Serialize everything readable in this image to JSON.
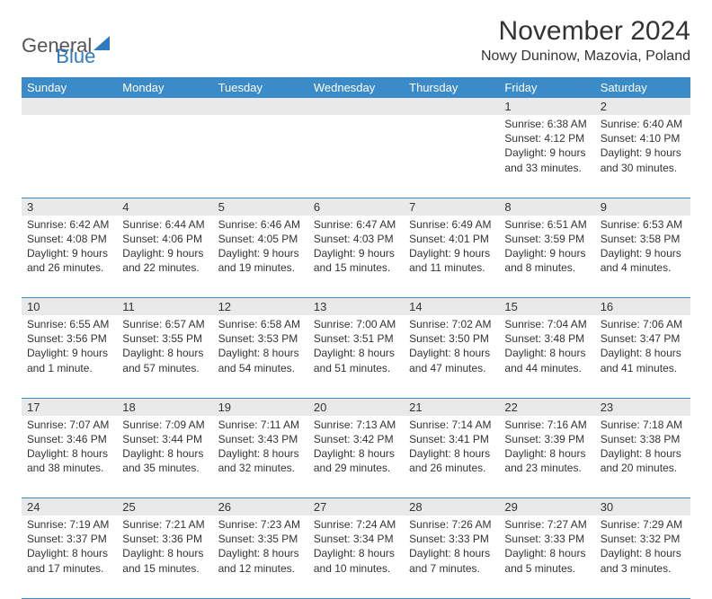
{
  "brand": {
    "part1": "General",
    "part2": "Blue"
  },
  "title": "November 2024",
  "location": "Nowy Duninow, Mazovia, Poland",
  "colors": {
    "header_bg": "#3b8bc9",
    "header_text": "#ffffff",
    "daynum_bg": "#e9e9e9",
    "rule": "#3b8bc9",
    "text": "#333333",
    "brand_blue": "#2f7bbf",
    "brand_gray": "#555555",
    "background": "#ffffff"
  },
  "day_headers": [
    "Sunday",
    "Monday",
    "Tuesday",
    "Wednesday",
    "Thursday",
    "Friday",
    "Saturday"
  ],
  "weeks": [
    [
      {
        "n": "",
        "sr": "",
        "ss": "",
        "dl": ""
      },
      {
        "n": "",
        "sr": "",
        "ss": "",
        "dl": ""
      },
      {
        "n": "",
        "sr": "",
        "ss": "",
        "dl": ""
      },
      {
        "n": "",
        "sr": "",
        "ss": "",
        "dl": ""
      },
      {
        "n": "",
        "sr": "",
        "ss": "",
        "dl": ""
      },
      {
        "n": "1",
        "sr": "Sunrise: 6:38 AM",
        "ss": "Sunset: 4:12 PM",
        "dl": "Daylight: 9 hours and 33 minutes."
      },
      {
        "n": "2",
        "sr": "Sunrise: 6:40 AM",
        "ss": "Sunset: 4:10 PM",
        "dl": "Daylight: 9 hours and 30 minutes."
      }
    ],
    [
      {
        "n": "3",
        "sr": "Sunrise: 6:42 AM",
        "ss": "Sunset: 4:08 PM",
        "dl": "Daylight: 9 hours and 26 minutes."
      },
      {
        "n": "4",
        "sr": "Sunrise: 6:44 AM",
        "ss": "Sunset: 4:06 PM",
        "dl": "Daylight: 9 hours and 22 minutes."
      },
      {
        "n": "5",
        "sr": "Sunrise: 6:46 AM",
        "ss": "Sunset: 4:05 PM",
        "dl": "Daylight: 9 hours and 19 minutes."
      },
      {
        "n": "6",
        "sr": "Sunrise: 6:47 AM",
        "ss": "Sunset: 4:03 PM",
        "dl": "Daylight: 9 hours and 15 minutes."
      },
      {
        "n": "7",
        "sr": "Sunrise: 6:49 AM",
        "ss": "Sunset: 4:01 PM",
        "dl": "Daylight: 9 hours and 11 minutes."
      },
      {
        "n": "8",
        "sr": "Sunrise: 6:51 AM",
        "ss": "Sunset: 3:59 PM",
        "dl": "Daylight: 9 hours and 8 minutes."
      },
      {
        "n": "9",
        "sr": "Sunrise: 6:53 AM",
        "ss": "Sunset: 3:58 PM",
        "dl": "Daylight: 9 hours and 4 minutes."
      }
    ],
    [
      {
        "n": "10",
        "sr": "Sunrise: 6:55 AM",
        "ss": "Sunset: 3:56 PM",
        "dl": "Daylight: 9 hours and 1 minute."
      },
      {
        "n": "11",
        "sr": "Sunrise: 6:57 AM",
        "ss": "Sunset: 3:55 PM",
        "dl": "Daylight: 8 hours and 57 minutes."
      },
      {
        "n": "12",
        "sr": "Sunrise: 6:58 AM",
        "ss": "Sunset: 3:53 PM",
        "dl": "Daylight: 8 hours and 54 minutes."
      },
      {
        "n": "13",
        "sr": "Sunrise: 7:00 AM",
        "ss": "Sunset: 3:51 PM",
        "dl": "Daylight: 8 hours and 51 minutes."
      },
      {
        "n": "14",
        "sr": "Sunrise: 7:02 AM",
        "ss": "Sunset: 3:50 PM",
        "dl": "Daylight: 8 hours and 47 minutes."
      },
      {
        "n": "15",
        "sr": "Sunrise: 7:04 AM",
        "ss": "Sunset: 3:48 PM",
        "dl": "Daylight: 8 hours and 44 minutes."
      },
      {
        "n": "16",
        "sr": "Sunrise: 7:06 AM",
        "ss": "Sunset: 3:47 PM",
        "dl": "Daylight: 8 hours and 41 minutes."
      }
    ],
    [
      {
        "n": "17",
        "sr": "Sunrise: 7:07 AM",
        "ss": "Sunset: 3:46 PM",
        "dl": "Daylight: 8 hours and 38 minutes."
      },
      {
        "n": "18",
        "sr": "Sunrise: 7:09 AM",
        "ss": "Sunset: 3:44 PM",
        "dl": "Daylight: 8 hours and 35 minutes."
      },
      {
        "n": "19",
        "sr": "Sunrise: 7:11 AM",
        "ss": "Sunset: 3:43 PM",
        "dl": "Daylight: 8 hours and 32 minutes."
      },
      {
        "n": "20",
        "sr": "Sunrise: 7:13 AM",
        "ss": "Sunset: 3:42 PM",
        "dl": "Daylight: 8 hours and 29 minutes."
      },
      {
        "n": "21",
        "sr": "Sunrise: 7:14 AM",
        "ss": "Sunset: 3:41 PM",
        "dl": "Daylight: 8 hours and 26 minutes."
      },
      {
        "n": "22",
        "sr": "Sunrise: 7:16 AM",
        "ss": "Sunset: 3:39 PM",
        "dl": "Daylight: 8 hours and 23 minutes."
      },
      {
        "n": "23",
        "sr": "Sunrise: 7:18 AM",
        "ss": "Sunset: 3:38 PM",
        "dl": "Daylight: 8 hours and 20 minutes."
      }
    ],
    [
      {
        "n": "24",
        "sr": "Sunrise: 7:19 AM",
        "ss": "Sunset: 3:37 PM",
        "dl": "Daylight: 8 hours and 17 minutes."
      },
      {
        "n": "25",
        "sr": "Sunrise: 7:21 AM",
        "ss": "Sunset: 3:36 PM",
        "dl": "Daylight: 8 hours and 15 minutes."
      },
      {
        "n": "26",
        "sr": "Sunrise: 7:23 AM",
        "ss": "Sunset: 3:35 PM",
        "dl": "Daylight: 8 hours and 12 minutes."
      },
      {
        "n": "27",
        "sr": "Sunrise: 7:24 AM",
        "ss": "Sunset: 3:34 PM",
        "dl": "Daylight: 8 hours and 10 minutes."
      },
      {
        "n": "28",
        "sr": "Sunrise: 7:26 AM",
        "ss": "Sunset: 3:33 PM",
        "dl": "Daylight: 8 hours and 7 minutes."
      },
      {
        "n": "29",
        "sr": "Sunrise: 7:27 AM",
        "ss": "Sunset: 3:33 PM",
        "dl": "Daylight: 8 hours and 5 minutes."
      },
      {
        "n": "30",
        "sr": "Sunrise: 7:29 AM",
        "ss": "Sunset: 3:32 PM",
        "dl": "Daylight: 8 hours and 3 minutes."
      }
    ]
  ]
}
